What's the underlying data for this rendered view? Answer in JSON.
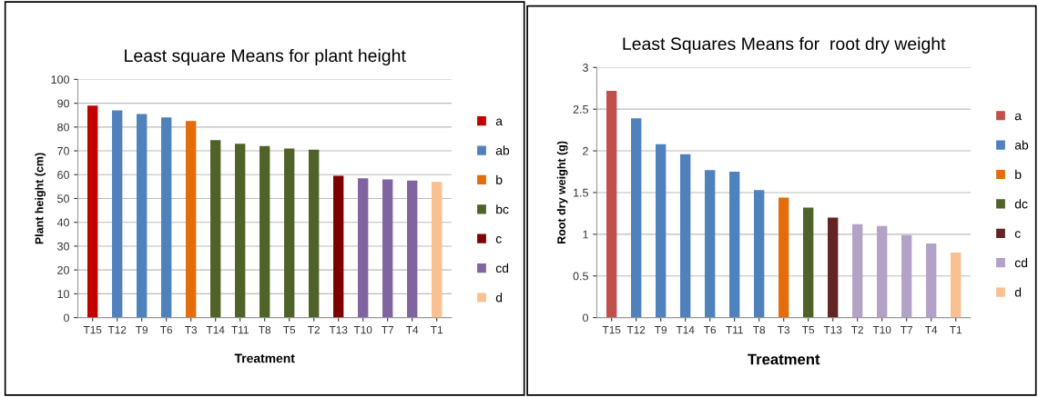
{
  "chart_data": [
    {
      "type": "bar",
      "title": "Least square Means for plant height",
      "xlabel": "Treatment",
      "ylabel": "Plant height (cm)",
      "categories": [
        "T15",
        "T12",
        "T9",
        "T6",
        "T3",
        "T14",
        "T11",
        "T8",
        "T5",
        "T2",
        "T13",
        "T10",
        "T7",
        "T4",
        "T1"
      ],
      "ylim": [
        0,
        100
      ],
      "yticks": [
        0,
        10,
        20,
        30,
        40,
        50,
        60,
        70,
        80,
        90,
        100
      ],
      "grid": "y",
      "legend": "right",
      "series": [
        {
          "name": "a",
          "color": "#c00000",
          "values": [
            89,
            null,
            null,
            null,
            null,
            null,
            null,
            null,
            null,
            null,
            null,
            null,
            null,
            null,
            null
          ]
        },
        {
          "name": "ab",
          "color": "#4f81bd",
          "values": [
            null,
            87,
            85.5,
            84,
            null,
            null,
            null,
            null,
            null,
            null,
            null,
            null,
            null,
            null,
            null
          ]
        },
        {
          "name": "b",
          "color": "#e46c0a",
          "values": [
            null,
            null,
            null,
            null,
            82.5,
            null,
            null,
            null,
            null,
            null,
            null,
            null,
            null,
            null,
            null
          ]
        },
        {
          "name": "bc",
          "color": "#4f6228",
          "values": [
            null,
            null,
            null,
            null,
            null,
            74.5,
            73,
            72,
            71,
            70.5,
            null,
            null,
            null,
            null,
            null
          ]
        },
        {
          "name": "c",
          "color": "#7f0000",
          "values": [
            null,
            null,
            null,
            null,
            null,
            null,
            null,
            null,
            null,
            null,
            59.5,
            null,
            null,
            null,
            null
          ]
        },
        {
          "name": "cd",
          "color": "#8064a2",
          "values": [
            null,
            null,
            null,
            null,
            null,
            null,
            null,
            null,
            null,
            null,
            null,
            58.5,
            58,
            57.5,
            null
          ]
        },
        {
          "name": "d",
          "color": "#fac090",
          "values": [
            null,
            null,
            null,
            null,
            null,
            null,
            null,
            null,
            null,
            null,
            null,
            null,
            null,
            null,
            57
          ]
        }
      ]
    },
    {
      "type": "bar",
      "title": "Least Squares Means for  root dry weight",
      "xlabel": "Treatment",
      "ylabel": "Root dry weight (g)",
      "categories": [
        "T15",
        "T12",
        "T9",
        "T14",
        "T6",
        "T11",
        "T8",
        "T3",
        "T5",
        "T13",
        "T2",
        "T10",
        "T7",
        "T4",
        "T1"
      ],
      "ylim": [
        0,
        3
      ],
      "yticks": [
        0,
        0.5,
        1,
        1.5,
        2,
        2.5,
        3
      ],
      "grid": "y",
      "legend": "right",
      "series": [
        {
          "name": "a",
          "color": "#c0504d",
          "values": [
            2.72,
            null,
            null,
            null,
            null,
            null,
            null,
            null,
            null,
            null,
            null,
            null,
            null,
            null,
            null
          ]
        },
        {
          "name": "ab",
          "color": "#4f81bd",
          "values": [
            null,
            2.39,
            2.08,
            1.96,
            1.77,
            1.75,
            1.53,
            null,
            null,
            null,
            null,
            null,
            null,
            null,
            null
          ]
        },
        {
          "name": "b",
          "color": "#e46c0a",
          "values": [
            null,
            null,
            null,
            null,
            null,
            null,
            null,
            1.44,
            null,
            null,
            null,
            null,
            null,
            null,
            null
          ]
        },
        {
          "name": "dc",
          "color": "#4f6228",
          "values": [
            null,
            null,
            null,
            null,
            null,
            null,
            null,
            null,
            1.32,
            null,
            null,
            null,
            null,
            null,
            null
          ]
        },
        {
          "name": "c",
          "color": "#632523",
          "values": [
            null,
            null,
            null,
            null,
            null,
            null,
            null,
            null,
            null,
            1.2,
            null,
            null,
            null,
            null,
            null
          ]
        },
        {
          "name": "cd",
          "color": "#b3a2c7",
          "values": [
            null,
            null,
            null,
            null,
            null,
            null,
            null,
            null,
            null,
            null,
            1.12,
            1.1,
            0.99,
            0.89,
            null
          ]
        },
        {
          "name": "d",
          "color": "#fac090",
          "values": [
            null,
            null,
            null,
            null,
            null,
            null,
            null,
            null,
            null,
            null,
            null,
            null,
            null,
            null,
            0.78
          ]
        }
      ]
    }
  ]
}
